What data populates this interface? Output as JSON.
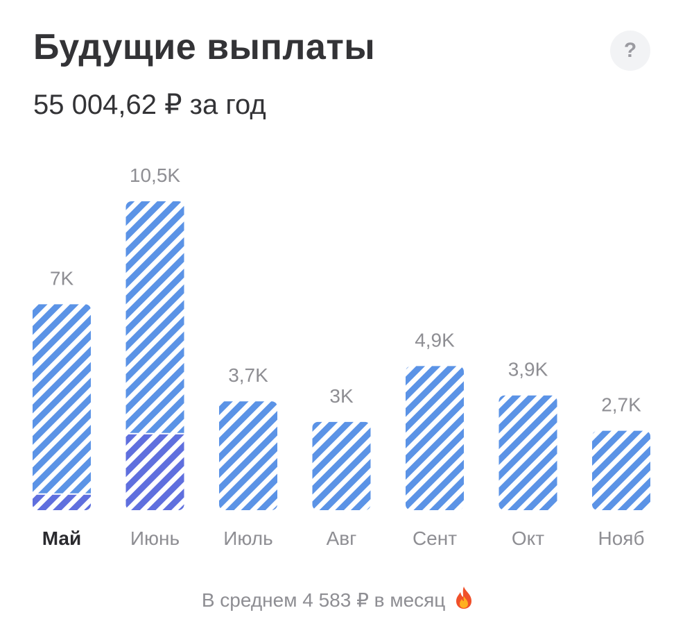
{
  "header": {
    "title": "Будущие выплаты",
    "help_label": "?",
    "total": "55 004,62 ₽ за год"
  },
  "footer": {
    "average": "В среднем 4 583 ₽ в месяц",
    "icon": "fire-icon"
  },
  "colors": {
    "stripe_light": "#5b93e6",
    "stripe_dark": "#5f6fde",
    "stripe_gap": "#ffffff",
    "label": "#8e8e93",
    "active_label": "#2a2a2e"
  },
  "chart_data": {
    "type": "bar",
    "categories": [
      "Май",
      "Июнь",
      "Июль",
      "Авг",
      "Сент",
      "Окт",
      "Нояб"
    ],
    "active_category": "Май",
    "value_labels": [
      "7K",
      "10,5K",
      "3,7K",
      "3K",
      "4,9K",
      "3,9K",
      "2,7K"
    ],
    "values": [
      7000,
      10500,
      3700,
      3000,
      4900,
      3900,
      2700
    ],
    "paid_values": [
      550,
      2600,
      0,
      0,
      0,
      0,
      0
    ],
    "ylim": [
      0,
      10500
    ],
    "grid": false
  }
}
